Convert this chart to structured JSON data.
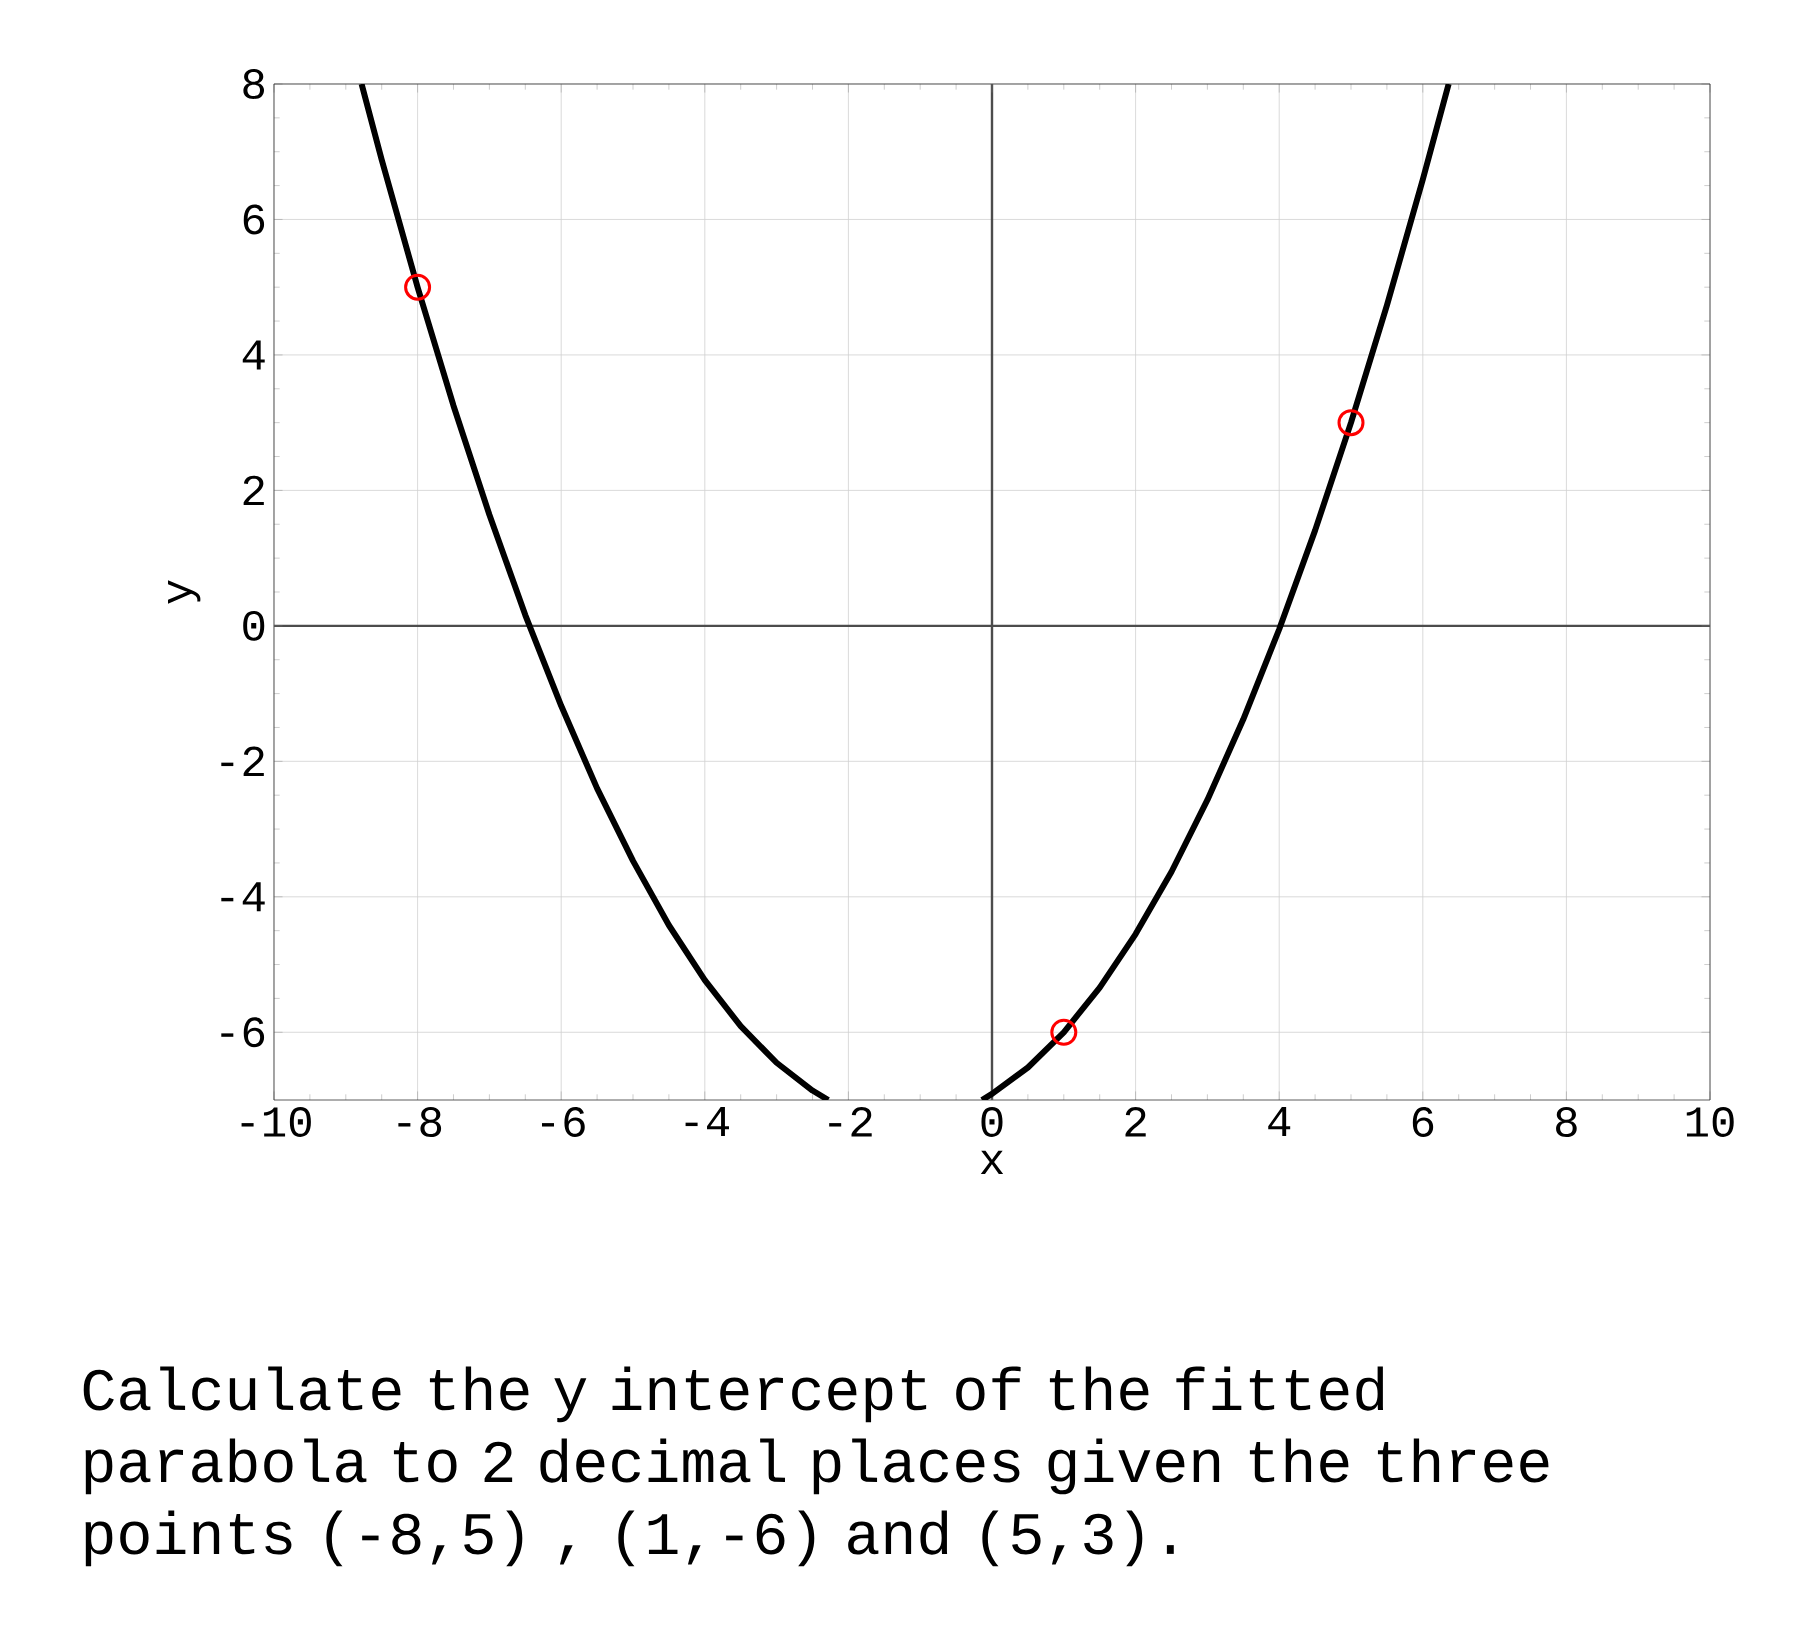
{
  "chart_data": {
    "type": "line",
    "xlabel": "x",
    "ylabel": "y",
    "xlim": [
      -10,
      10
    ],
    "ylim": [
      -7,
      8
    ],
    "xticks": [
      -10,
      -8,
      -6,
      -4,
      -2,
      0,
      2,
      4,
      6,
      8,
      10
    ],
    "yticks": [
      -6,
      -4,
      -2,
      0,
      2,
      4,
      6,
      8
    ],
    "grid": true,
    "line_style": "solid",
    "marker": "none",
    "series": [
      {
        "color": "#000000",
        "x": [
          -8.78,
          -8.5,
          -8,
          -7.5,
          -7,
          -6.5,
          -6,
          -5.5,
          -5,
          -4.5,
          -4,
          -3.5,
          -3,
          -2.5,
          -2.28
        ],
        "values": [
          8.0,
          6.88,
          5.0,
          3.25,
          1.64,
          0.16,
          -1.18,
          -2.4,
          -3.47,
          -4.42,
          -5.23,
          -5.91,
          -6.45,
          -6.86,
          -7.0
        ]
      },
      {
        "color": "#000000",
        "x": [
          -0.14,
          0,
          0.5,
          1,
          1.5,
          2,
          2.5,
          3,
          3.5,
          4,
          4.5,
          5,
          5.5,
          6,
          6.36
        ],
        "values": [
          -7.0,
          -6.91,
          -6.52,
          -6.0,
          -5.34,
          -4.55,
          -3.63,
          -2.57,
          -1.38,
          -0.05,
          1.41,
          3.0,
          4.73,
          6.59,
          8.0
        ]
      },
      {
        "type": "scatter",
        "marker": "circle",
        "color": "#ff0000",
        "x": [
          -8,
          1,
          5
        ],
        "values": [
          5,
          -6,
          3
        ]
      }
    ],
    "annotations": [
      "Calculate the y intercept of the fitted parabola to 2 decimal places given the three points (-8,5) , (1,-6) and (5,3)."
    ]
  }
}
